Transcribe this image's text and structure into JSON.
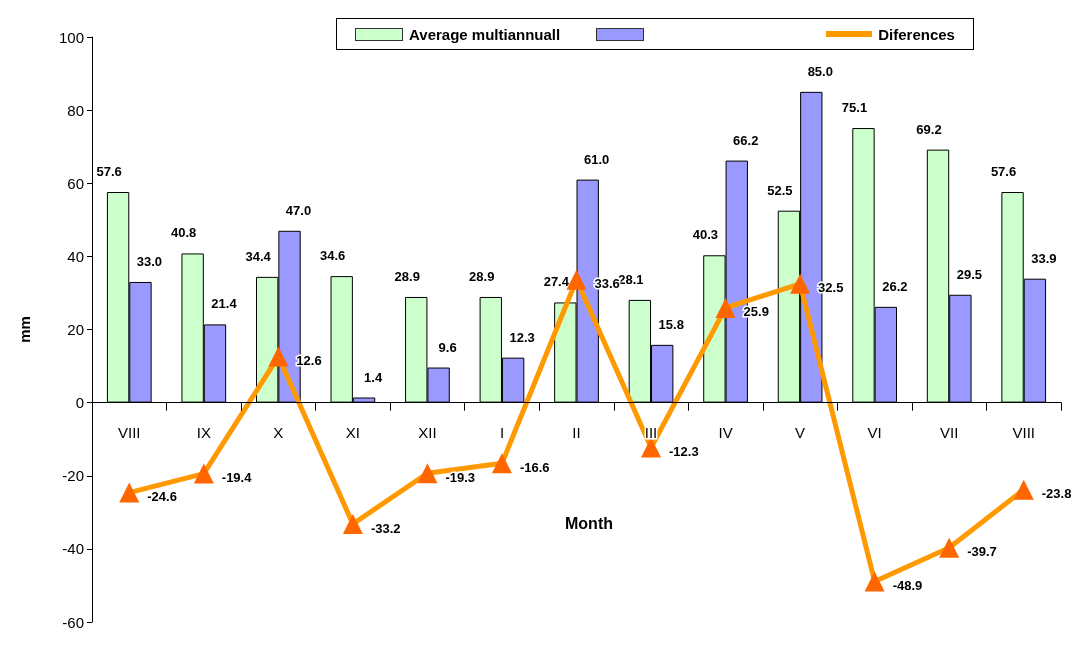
{
  "chart_data": {
    "type": "bar",
    "annotations": [
      "Month"
    ],
    "ylabel": "mm",
    "categories": [
      "VIII",
      "IX",
      "X",
      "XI",
      "XII",
      "I",
      "II",
      "III",
      "IV",
      "V",
      "VI",
      "VII",
      "VIII"
    ],
    "series": [
      {
        "name": "Average  multiannuall",
        "color": "#ccffcc",
        "values": [
          57.6,
          40.8,
          34.4,
          34.6,
          28.9,
          28.9,
          27.4,
          28.1,
          40.3,
          52.5,
          75.1,
          69.2,
          57.6
        ]
      },
      {
        "color": "#9999ff",
        "values": [
          33.0,
          21.4,
          47.0,
          1.4,
          9.6,
          12.3,
          61.0,
          15.8,
          66.2,
          85.0,
          26.2,
          29.5,
          33.9
        ],
        "value_labels": [
          "33.0",
          "21.4",
          "47.0",
          "1.4",
          "9.6",
          "12.3",
          "61.0",
          "15.8",
          "66.2",
          "85.0",
          "26.2",
          "29.5",
          "33.9"
        ]
      },
      {
        "name": "Diferences",
        "type": "line",
        "color": "#ff9900",
        "marker": "triangle",
        "values": [
          -24.6,
          -19.4,
          12.6,
          -33.2,
          -19.3,
          -16.6,
          33.6,
          -12.3,
          25.9,
          32.5,
          -48.9,
          -39.7,
          -23.8
        ]
      }
    ],
    "ylim": [
      -60,
      100
    ],
    "yticks": [
      -60,
      -40,
      -20,
      0,
      20,
      40,
      60,
      80,
      100
    ],
    "grid": false,
    "legend": "top",
    "data_labels": true
  }
}
